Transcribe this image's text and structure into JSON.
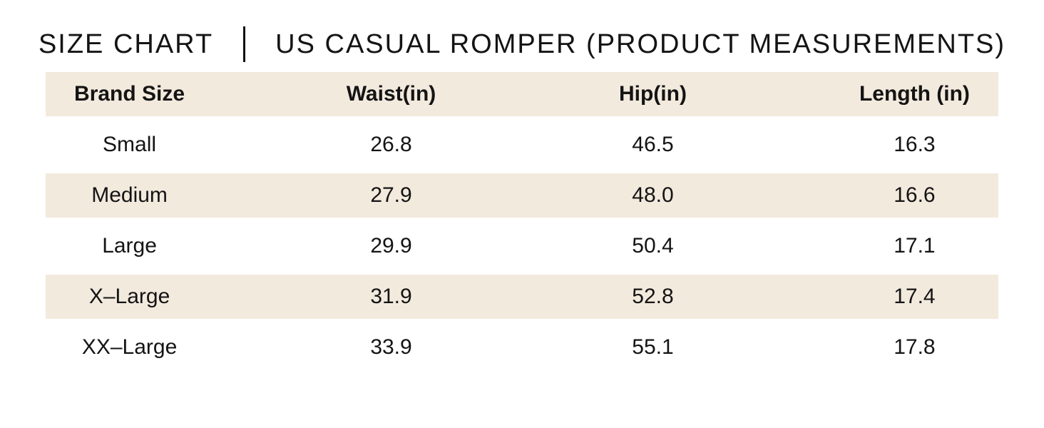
{
  "title": {
    "left": "SIZE CHART",
    "right": "US CASUAL ROMPER (PRODUCT MEASUREMENTS)"
  },
  "table": {
    "columns": [
      "Brand Size",
      "Waist(in)",
      "Hip(in)",
      "Length (in)"
    ],
    "rows": [
      [
        "Small",
        "26.8",
        "46.5",
        "16.3"
      ],
      [
        "Medium",
        "27.9",
        "48.0",
        "16.6"
      ],
      [
        "Large",
        "29.9",
        "50.4",
        "17.1"
      ],
      [
        "X–Large",
        "31.9",
        "52.8",
        "17.4"
      ],
      [
        "XX–Large",
        "33.9",
        "55.1",
        "17.8"
      ]
    ]
  },
  "chart_data": {
    "type": "table",
    "title": "SIZE CHART | US CASUAL ROMPER (PRODUCT MEASUREMENTS)",
    "categories": [
      "Small",
      "Medium",
      "Large",
      "X-Large",
      "XX-Large"
    ],
    "series": [
      {
        "name": "Waist(in)",
        "values": [
          26.8,
          27.9,
          29.9,
          31.9,
          33.9
        ]
      },
      {
        "name": "Hip(in)",
        "values": [
          46.5,
          48.0,
          50.4,
          52.8,
          55.1
        ]
      },
      {
        "name": "Length (in)",
        "values": [
          16.3,
          16.6,
          17.1,
          17.4,
          17.8
        ]
      }
    ]
  },
  "colors": {
    "row_highlight": "#f3eade",
    "background": "#ffffff",
    "text": "#141414"
  }
}
